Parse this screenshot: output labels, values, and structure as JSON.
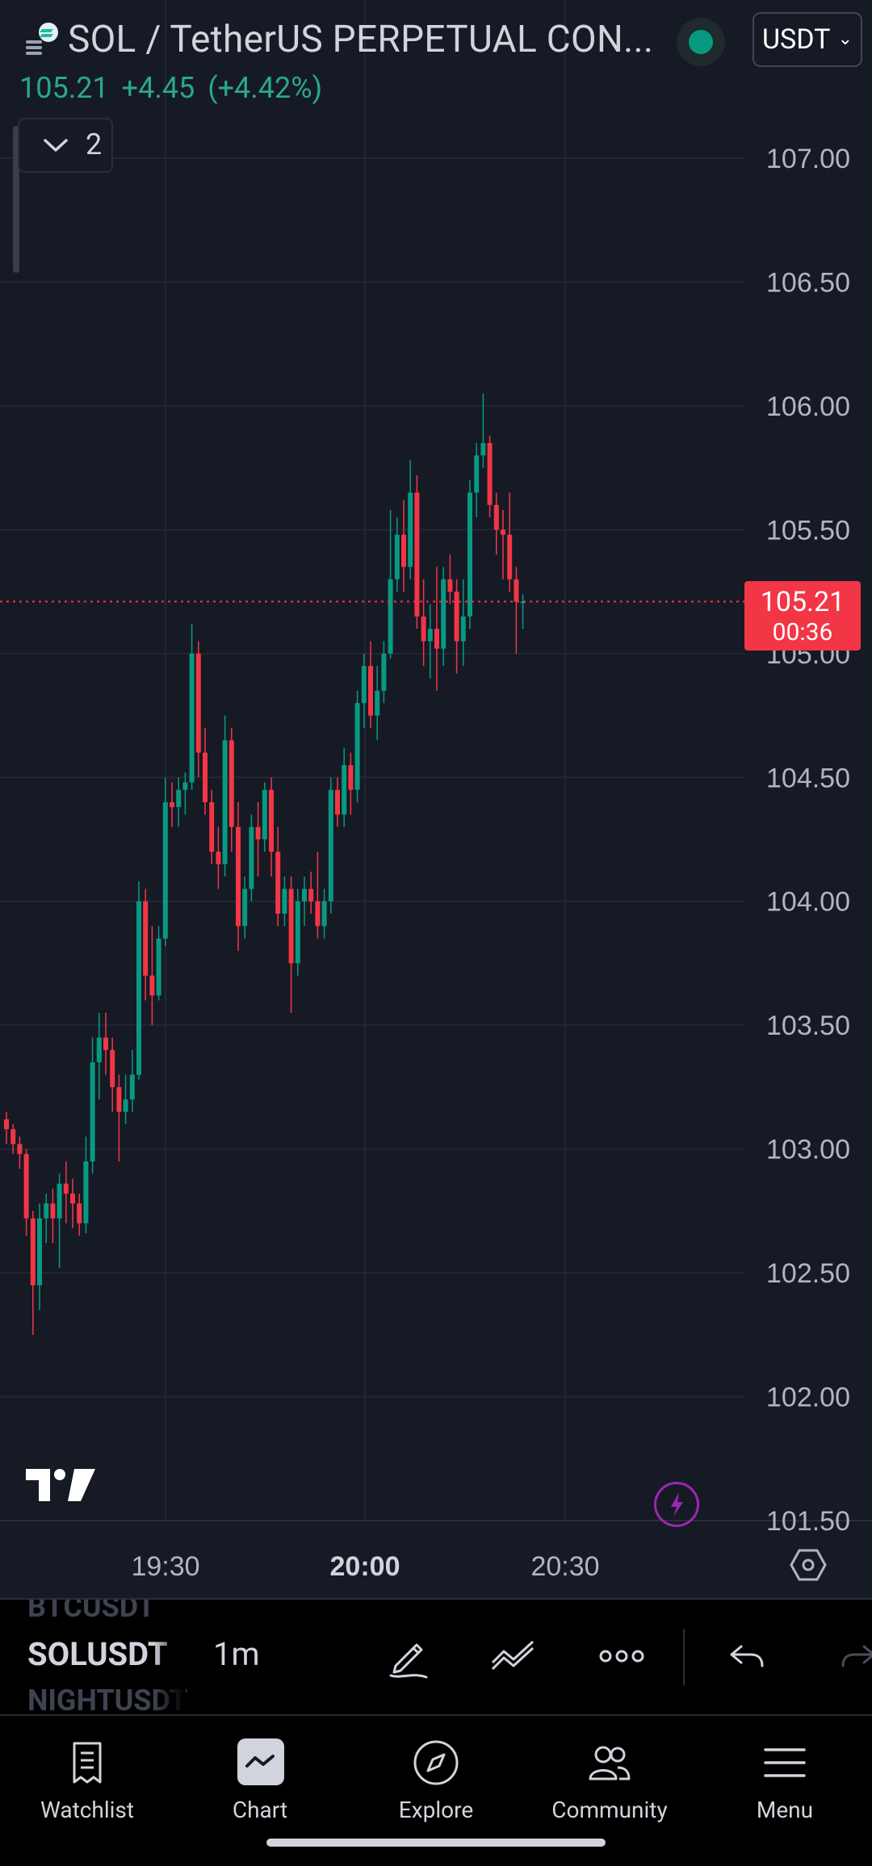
{
  "header": {
    "symbol_title": "SOL / TetherUS PERPETUAL CON...",
    "currency": "USDT",
    "last_price": "105.21",
    "change": "+4.45",
    "change_pct": "(+4.42%)",
    "indicator_count": "2"
  },
  "colors": {
    "up": "#089981",
    "down": "#f23645",
    "background": "#161a25"
  },
  "chart_data": {
    "type": "candlestick",
    "y_ticks": [
      "107.00",
      "106.50",
      "106.00",
      "105.50",
      "105.00",
      "104.50",
      "104.00",
      "103.50",
      "103.00",
      "102.50",
      "102.00",
      "101.50"
    ],
    "ylim": [
      101.5,
      107.0
    ],
    "x_ticks": [
      {
        "label": "19:30",
        "bold": false
      },
      {
        "label": "20:00",
        "bold": true
      },
      {
        "label": "20:30",
        "bold": false
      }
    ],
    "last_price": 105.21,
    "last_price_label": "105.21",
    "countdown": "00:36",
    "candles": [
      [
        103.12,
        103.15,
        103.02,
        103.08
      ],
      [
        103.08,
        103.1,
        102.98,
        103.02
      ],
      [
        103.02,
        103.05,
        102.92,
        102.98
      ],
      [
        102.98,
        103.0,
        102.65,
        102.72
      ],
      [
        102.72,
        102.75,
        102.25,
        102.45
      ],
      [
        102.45,
        102.78,
        102.35,
        102.72
      ],
      [
        102.72,
        102.82,
        102.62,
        102.78
      ],
      [
        102.78,
        102.84,
        102.62,
        102.72
      ],
      [
        102.72,
        102.9,
        102.52,
        102.86
      ],
      [
        102.86,
        102.95,
        102.7,
        102.82
      ],
      [
        102.82,
        102.88,
        102.68,
        102.78
      ],
      [
        102.78,
        102.82,
        102.65,
        102.7
      ],
      [
        102.7,
        103.05,
        102.66,
        102.95
      ],
      [
        102.95,
        103.45,
        102.9,
        103.35
      ],
      [
        103.35,
        103.55,
        103.2,
        103.45
      ],
      [
        103.45,
        103.55,
        103.3,
        103.4
      ],
      [
        103.4,
        103.45,
        103.15,
        103.25
      ],
      [
        103.25,
        103.3,
        102.95,
        103.15
      ],
      [
        103.15,
        103.3,
        103.1,
        103.2
      ],
      [
        103.2,
        103.4,
        103.15,
        103.3
      ],
      [
        103.3,
        104.08,
        103.28,
        104.0
      ],
      [
        104.0,
        104.05,
        103.6,
        103.7
      ],
      [
        103.7,
        103.9,
        103.5,
        103.62
      ],
      [
        103.62,
        103.9,
        103.6,
        103.85
      ],
      [
        103.85,
        104.5,
        103.82,
        104.4
      ],
      [
        104.4,
        104.48,
        104.3,
        104.38
      ],
      [
        104.38,
        104.5,
        104.3,
        104.45
      ],
      [
        104.45,
        104.52,
        104.35,
        104.48
      ],
      [
        104.48,
        105.12,
        104.45,
        105.0
      ],
      [
        105.0,
        105.05,
        104.5,
        104.6
      ],
      [
        104.6,
        104.7,
        104.35,
        104.4
      ],
      [
        104.4,
        104.45,
        104.15,
        104.2
      ],
      [
        104.2,
        104.3,
        104.05,
        104.15
      ],
      [
        104.15,
        104.75,
        104.1,
        104.65
      ],
      [
        104.65,
        104.7,
        104.2,
        104.3
      ],
      [
        104.3,
        104.4,
        103.8,
        103.9
      ],
      [
        103.9,
        104.1,
        103.85,
        104.05
      ],
      [
        104.05,
        104.35,
        104.0,
        104.3
      ],
      [
        104.3,
        104.4,
        104.1,
        104.25
      ],
      [
        104.25,
        104.48,
        104.2,
        104.45
      ],
      [
        104.45,
        104.5,
        104.1,
        104.2
      ],
      [
        104.2,
        104.3,
        103.9,
        103.95
      ],
      [
        103.95,
        104.1,
        103.9,
        104.05
      ],
      [
        104.05,
        104.1,
        103.55,
        103.75
      ],
      [
        103.75,
        104.05,
        103.7,
        104.0
      ],
      [
        104.0,
        104.1,
        103.9,
        104.05
      ],
      [
        104.05,
        104.12,
        103.95,
        104.0
      ],
      [
        104.0,
        104.2,
        103.85,
        103.9
      ],
      [
        103.9,
        104.05,
        103.85,
        104.0
      ],
      [
        104.0,
        104.5,
        103.95,
        104.45
      ],
      [
        104.45,
        104.5,
        104.3,
        104.35
      ],
      [
        104.35,
        104.62,
        104.3,
        104.55
      ],
      [
        104.55,
        104.6,
        104.35,
        104.45
      ],
      [
        104.45,
        104.85,
        104.4,
        104.8
      ],
      [
        104.8,
        105.0,
        104.7,
        104.95
      ],
      [
        104.95,
        105.05,
        104.7,
        104.75
      ],
      [
        104.75,
        104.95,
        104.65,
        104.85
      ],
      [
        104.85,
        105.05,
        104.8,
        105.0
      ],
      [
        105.0,
        105.58,
        104.98,
        105.3
      ],
      [
        105.3,
        105.55,
        105.25,
        105.48
      ],
      [
        105.48,
        105.62,
        105.25,
        105.35
      ],
      [
        105.35,
        105.78,
        105.3,
        105.65
      ],
      [
        105.65,
        105.72,
        105.1,
        105.15
      ],
      [
        105.15,
        105.3,
        104.95,
        105.05
      ],
      [
        105.05,
        105.2,
        104.9,
        105.1
      ],
      [
        105.1,
        105.35,
        104.85,
        105.02
      ],
      [
        105.02,
        105.35,
        104.95,
        105.3
      ],
      [
        105.3,
        105.4,
        105.2,
        105.25
      ],
      [
        105.25,
        105.3,
        104.92,
        105.05
      ],
      [
        105.05,
        105.3,
        104.95,
        105.15
      ],
      [
        105.15,
        105.7,
        105.1,
        105.65
      ],
      [
        105.65,
        105.85,
        105.55,
        105.8
      ],
      [
        105.8,
        106.05,
        105.75,
        105.85
      ],
      [
        105.85,
        105.88,
        105.55,
        105.6
      ],
      [
        105.6,
        105.65,
        105.4,
        105.5
      ],
      [
        105.5,
        105.58,
        105.3,
        105.48
      ],
      [
        105.48,
        105.65,
        105.25,
        105.3
      ],
      [
        105.3,
        105.35,
        105.0,
        105.21
      ],
      [
        105.21,
        105.24,
        105.1,
        105.21
      ]
    ]
  },
  "toolbar": {
    "symbol_prev": "BTCUSDT",
    "symbol_current": "SOLUSDT",
    "symbol_next": "NIGHTUSDT",
    "interval": "1m"
  },
  "nav": [
    {
      "label": "Watchlist",
      "icon": "watchlist-icon"
    },
    {
      "label": "Chart",
      "icon": "chart-icon"
    },
    {
      "label": "Explore",
      "icon": "compass-icon"
    },
    {
      "label": "Community",
      "icon": "community-icon"
    },
    {
      "label": "Menu",
      "icon": "menu-icon"
    }
  ]
}
